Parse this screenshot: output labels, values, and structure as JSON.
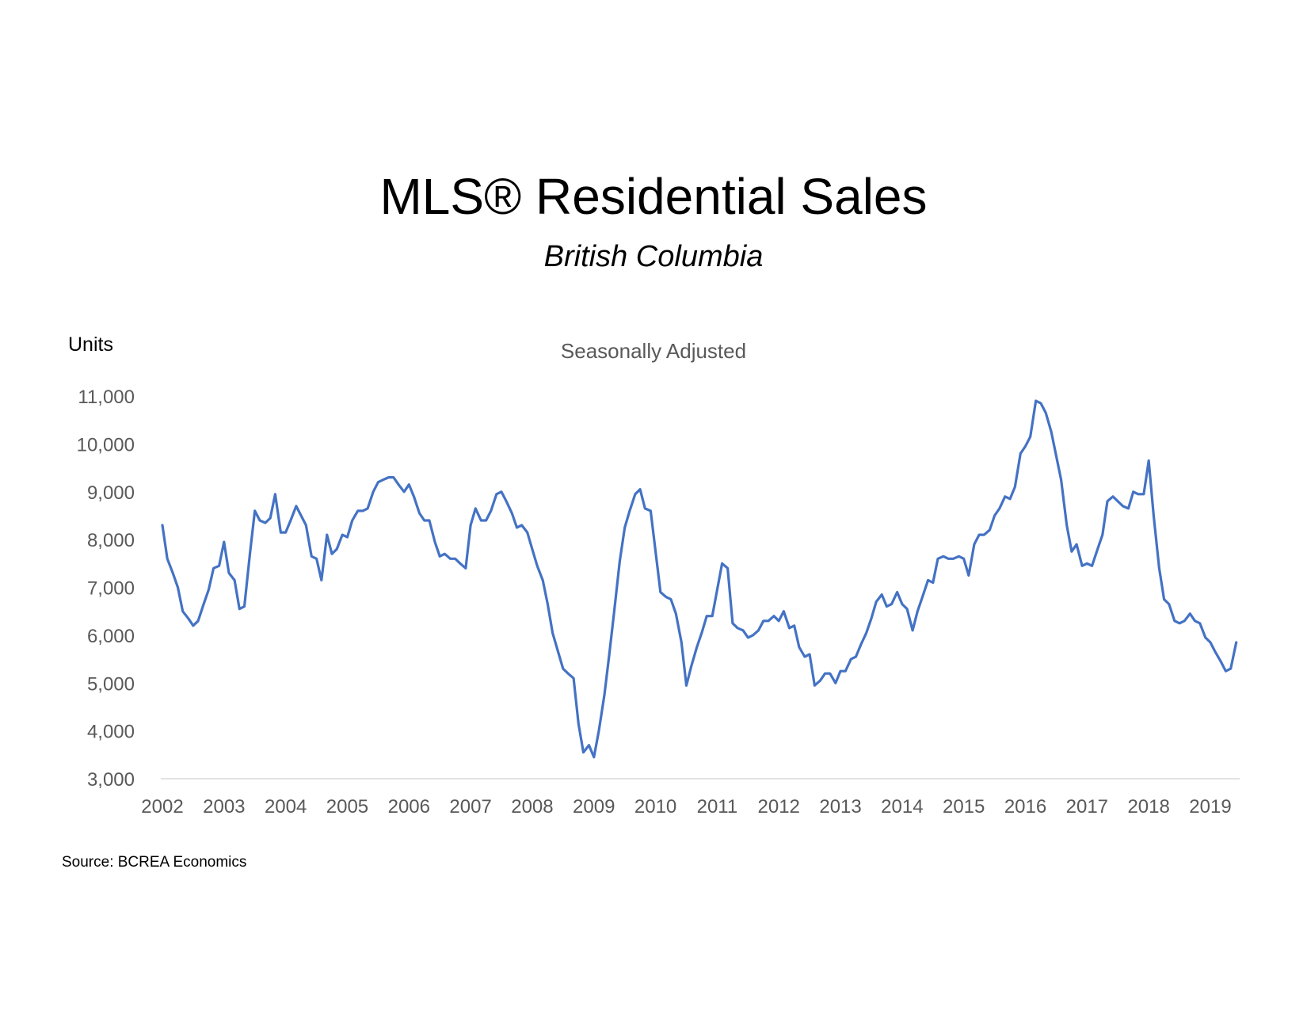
{
  "chart_data": {
    "type": "line",
    "title": "MLS® Residential Sales",
    "subtitle": "British Columbia",
    "ylabel": "Units",
    "note": "Seasonally Adjusted",
    "source": "Source: BCREA Economics",
    "ylim": [
      3000,
      11000
    ],
    "y_ticks": [
      "3,000",
      "4,000",
      "5,000",
      "6,000",
      "7,000",
      "8,000",
      "9,000",
      "10,000",
      "11,000"
    ],
    "x_ticks": [
      "2002",
      "2003",
      "2004",
      "2005",
      "2006",
      "2007",
      "2008",
      "2009",
      "2010",
      "2011",
      "2012",
      "2013",
      "2014",
      "2015",
      "2016",
      "2017",
      "2018",
      "2019"
    ],
    "xlim": [
      2002.0,
      2019.45
    ],
    "grid": false,
    "line_color": "#4472C4",
    "series": [
      {
        "x": [
          2002.0,
          2002.08,
          2002.17,
          2002.25,
          2002.33,
          2002.42,
          2002.5,
          2002.58,
          2002.67,
          2002.75,
          2002.83,
          2002.92,
          2003.0,
          2003.08,
          2003.17,
          2003.25,
          2003.33,
          2003.42,
          2003.5,
          2003.58,
          2003.67,
          2003.75,
          2003.83,
          2003.92,
          2004.0,
          2004.08,
          2004.17,
          2004.25,
          2004.33,
          2004.42,
          2004.5,
          2004.58,
          2004.67,
          2004.75,
          2004.83,
          2004.92,
          2005.0,
          2005.08,
          2005.17,
          2005.25,
          2005.33,
          2005.42,
          2005.5,
          2005.58,
          2005.67,
          2005.75,
          2005.83,
          2005.92,
          2006.0,
          2006.08,
          2006.17,
          2006.25,
          2006.33,
          2006.42,
          2006.5,
          2006.58,
          2006.67,
          2006.75,
          2006.83,
          2006.92,
          2007.0,
          2007.08,
          2007.17,
          2007.25,
          2007.33,
          2007.42,
          2007.5,
          2007.58,
          2007.67,
          2007.75,
          2007.83,
          2007.92,
          2008.0,
          2008.08,
          2008.17,
          2008.25,
          2008.33,
          2008.42,
          2008.5,
          2008.58,
          2008.67,
          2008.75,
          2008.83,
          2008.92,
          2009.0,
          2009.08,
          2009.17,
          2009.25,
          2009.33,
          2009.42,
          2009.5,
          2009.58,
          2009.67,
          2009.75,
          2009.83,
          2009.92,
          2010.0,
          2010.08,
          2010.17,
          2010.25,
          2010.33,
          2010.42,
          2010.5,
          2010.58,
          2010.67,
          2010.75,
          2010.83,
          2010.92,
          2011.0,
          2011.08,
          2011.17,
          2011.25,
          2011.33,
          2011.42,
          2011.5,
          2011.58,
          2011.67,
          2011.75,
          2011.83,
          2011.92,
          2012.0,
          2012.08,
          2012.17,
          2012.25,
          2012.33,
          2012.42,
          2012.5,
          2012.58,
          2012.67,
          2012.75,
          2012.83,
          2012.92,
          2013.0,
          2013.08,
          2013.17,
          2013.25,
          2013.33,
          2013.42,
          2013.5,
          2013.58,
          2013.67,
          2013.75,
          2013.83,
          2013.92,
          2014.0,
          2014.08,
          2014.17,
          2014.25,
          2014.33,
          2014.42,
          2014.5,
          2014.58,
          2014.67,
          2014.75,
          2014.83,
          2014.92,
          2015.0,
          2015.08,
          2015.17,
          2015.25,
          2015.33,
          2015.42,
          2015.5,
          2015.58,
          2015.67,
          2015.75,
          2015.83,
          2015.92,
          2016.0,
          2016.08,
          2016.17,
          2016.25,
          2016.33,
          2016.42,
          2016.5,
          2016.58,
          2016.67,
          2016.75,
          2016.83,
          2016.92,
          2017.0,
          2017.08,
          2017.17,
          2017.25,
          2017.33,
          2017.42,
          2017.5,
          2017.58,
          2017.67,
          2017.75,
          2017.83,
          2017.92,
          2018.0,
          2018.08,
          2018.17,
          2018.25,
          2018.33,
          2018.42,
          2018.5,
          2018.58,
          2018.67,
          2018.75,
          2018.83,
          2018.92,
          2019.0,
          2019.08,
          2019.17,
          2019.25,
          2019.33,
          2019.42
        ],
        "values": [
          8300,
          7600,
          7300,
          7000,
          6500,
          6350,
          6200,
          6300,
          6650,
          6950,
          7400,
          7450,
          7950,
          7300,
          7150,
          6550,
          6600,
          7700,
          8600,
          8400,
          8350,
          8450,
          8950,
          8150,
          8150,
          8400,
          8700,
          8500,
          8300,
          7650,
          7600,
          7150,
          8100,
          7700,
          7800,
          8100,
          8050,
          8400,
          8600,
          8600,
          8650,
          9000,
          9200,
          9250,
          9300,
          9300,
          9150,
          9000,
          9150,
          8900,
          8550,
          8400,
          8400,
          7950,
          7650,
          7700,
          7600,
          7600,
          7500,
          7400,
          8300,
          8650,
          8400,
          8400,
          8600,
          8950,
          9000,
          8800,
          8550,
          8250,
          8300,
          8150,
          7800,
          7450,
          7150,
          6650,
          6050,
          5650,
          5300,
          5200,
          5100,
          4150,
          3550,
          3700,
          3450,
          4000,
          4750,
          5600,
          6500,
          7550,
          8250,
          8600,
          8950,
          9050,
          8650,
          8600,
          7750,
          6900,
          6800,
          6750,
          6450,
          5850,
          4950,
          5350,
          5750,
          6050,
          6400,
          6400,
          6950,
          7500,
          7400,
          6250,
          6150,
          6100,
          5950,
          6000,
          6100,
          6300,
          6300,
          6400,
          6300,
          6500,
          6150,
          6200,
          5750,
          5550,
          5600,
          4950,
          5050,
          5200,
          5200,
          5000,
          5250,
          5250,
          5500,
          5550,
          5800,
          6050,
          6350,
          6700,
          6850,
          6600,
          6650,
          6900,
          6650,
          6550,
          6100,
          6500,
          6800,
          7150,
          7100,
          7600,
          7650,
          7600,
          7600,
          7650,
          7600,
          7250,
          7900,
          8100,
          8100,
          8200,
          8500,
          8650,
          8900,
          8850,
          9100,
          9800,
          9950,
          10150,
          10900,
          10850,
          10650,
          10250,
          9750,
          9250,
          8300,
          7750,
          7900,
          7450,
          7500,
          7450,
          7800,
          8100,
          8800,
          8900,
          8800,
          8700,
          8650,
          9000,
          8950,
          8950,
          9650,
          8500,
          7400,
          6750,
          6650,
          6300,
          6250,
          6300,
          6450,
          6300,
          6250,
          5950,
          5850,
          5650,
          5450,
          5250,
          5300,
          5850
        ]
      }
    ]
  }
}
